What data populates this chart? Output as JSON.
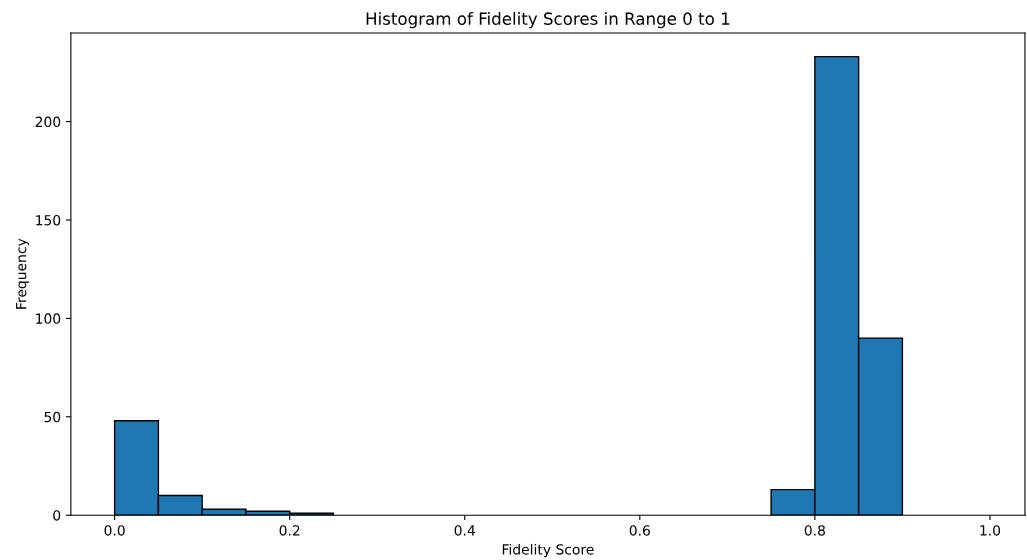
{
  "chart_data": {
    "type": "histogram",
    "title": "Histogram of Fidelity Scores in Range 0 to 1",
    "xlabel": "Fidelity Score",
    "ylabel": "Frequency",
    "bins": [
      0,
      0.05,
      0.1,
      0.15,
      0.2,
      0.25,
      0.3,
      0.35,
      0.4,
      0.45,
      0.5,
      0.55,
      0.6,
      0.65,
      0.7,
      0.75,
      0.8,
      0.85,
      0.9,
      0.95,
      1.0
    ],
    "values": [
      48,
      10,
      3,
      2,
      1,
      0,
      0,
      0,
      0,
      0,
      0,
      0,
      0,
      0,
      0,
      13,
      233,
      90,
      0,
      0
    ],
    "color": "#1f77b4",
    "xlim": [
      -0.05,
      1.04
    ],
    "ylim": [
      0,
      245
    ],
    "xticks": [
      {
        "value": 0,
        "label": "0.0"
      },
      0.2,
      0.4,
      0.6,
      0.8,
      {
        "value": 1,
        "label": "1.0"
      }
    ],
    "yticks": [
      0,
      50,
      100,
      150,
      200
    ],
    "grid": false
  }
}
